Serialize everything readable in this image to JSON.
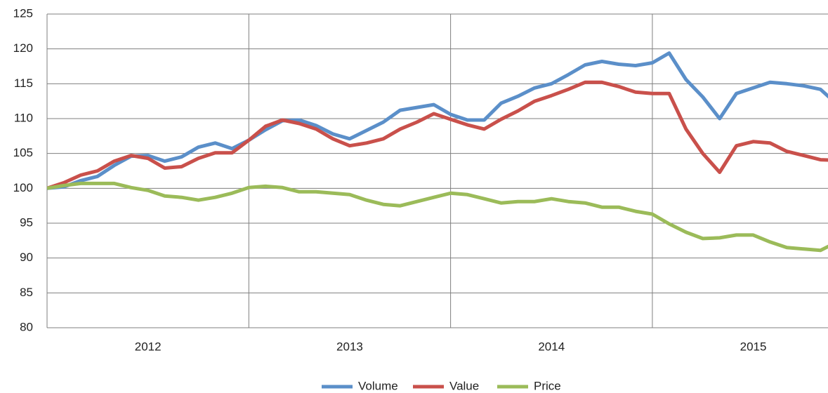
{
  "chart_data": {
    "type": "line",
    "xgroups": [
      "2012",
      "2013",
      "2014",
      "2015"
    ],
    "ylim": [
      80,
      125
    ],
    "yticks": [
      80,
      85,
      90,
      95,
      100,
      105,
      110,
      115,
      120,
      125
    ],
    "grid": true,
    "legend": "bottom",
    "series": [
      {
        "name": "Volume",
        "color": "#5b8fc9",
        "values": [
          100,
          100.2,
          101.1,
          101.7,
          103.3,
          104.6,
          104.7,
          103.9,
          104.5,
          105.9,
          106.5,
          105.7,
          106.9,
          108.4,
          109.7,
          109.8,
          109.0,
          107.8,
          107.1,
          108.3,
          109.5,
          111.2,
          111.6,
          112.0,
          110.6,
          109.8,
          109.8,
          112.2,
          113.2,
          114.4,
          115.0,
          116.3,
          117.7,
          118.2,
          117.8,
          117.6,
          118.0,
          119.4,
          115.6,
          113.1,
          110.0,
          113.6,
          114.4,
          115.2,
          115.0,
          114.7,
          114.2,
          112.0
        ]
      },
      {
        "name": "Value",
        "color": "#c9504b",
        "values": [
          100,
          100.8,
          101.9,
          102.5,
          103.9,
          104.7,
          104.3,
          102.9,
          103.1,
          104.3,
          105.1,
          105.1,
          106.9,
          108.9,
          109.8,
          109.3,
          108.5,
          107.1,
          106.1,
          106.5,
          107.1,
          108.5,
          109.5,
          110.7,
          109.9,
          109.1,
          108.5,
          109.9,
          111.1,
          112.5,
          113.3,
          114.2,
          115.2,
          115.2,
          114.6,
          113.8,
          113.6,
          113.6,
          108.5,
          105.0,
          102.3,
          106.1,
          106.7,
          106.5,
          105.3,
          104.7,
          104.1,
          104.0
        ]
      },
      {
        "name": "Price",
        "color": "#9bbb59",
        "values": [
          100,
          100.4,
          100.7,
          100.7,
          100.7,
          100.1,
          99.7,
          98.9,
          98.7,
          98.3,
          98.7,
          99.3,
          100.1,
          100.3,
          100.1,
          99.5,
          99.5,
          99.3,
          99.1,
          98.3,
          97.7,
          97.5,
          98.1,
          98.7,
          99.3,
          99.1,
          98.5,
          97.9,
          98.1,
          98.1,
          98.5,
          98.1,
          97.9,
          97.3,
          97.3,
          96.7,
          96.3,
          94.9,
          93.7,
          92.8,
          92.9,
          93.3,
          93.3,
          92.3,
          91.5,
          91.3,
          91.1,
          92.3
        ]
      }
    ]
  }
}
